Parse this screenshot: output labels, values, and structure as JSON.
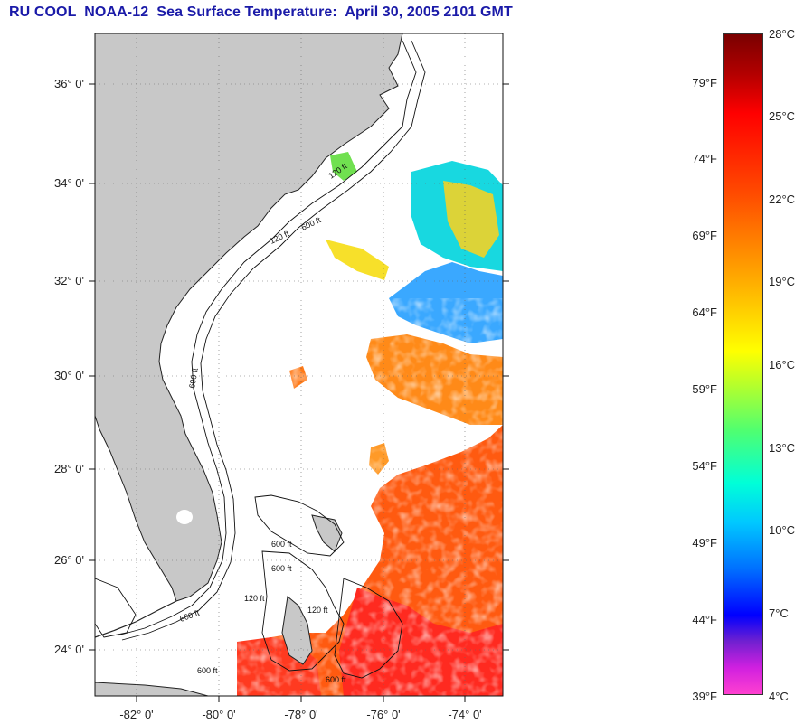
{
  "title": "RU COOL  NOAA-12  Sea Surface Temperature:  April 30, 2005 2101 GMT",
  "map": {
    "lon_range": [
      -83.0,
      -72.9
    ],
    "lat_range": [
      23.0,
      37.3
    ],
    "lon_ticks": [
      "-82° 0'",
      "-80° 0'",
      "-78° 0'",
      "-76° 0'",
      "-74° 0'"
    ],
    "lat_ticks": [
      "36° 0'",
      "34° 0'",
      "32° 0'",
      "30° 0'",
      "28° 0'",
      "26° 0'",
      "24° 0'"
    ],
    "contour_labels": [
      "120 ft",
      "600 ft"
    ],
    "land_color": "#c8c8c8",
    "grid": "dotted"
  },
  "colorbar": {
    "celsius": [
      "28°C",
      "25°C",
      "22°C",
      "19°C",
      "16°C",
      "13°C",
      "10°C",
      "7°C",
      "4°C"
    ],
    "fahrenheit": [
      "79°F",
      "74°F",
      "69°F",
      "64°F",
      "59°F",
      "54°F",
      "49°F",
      "44°F",
      "39°F"
    ],
    "range_c": [
      4,
      28
    ]
  }
}
